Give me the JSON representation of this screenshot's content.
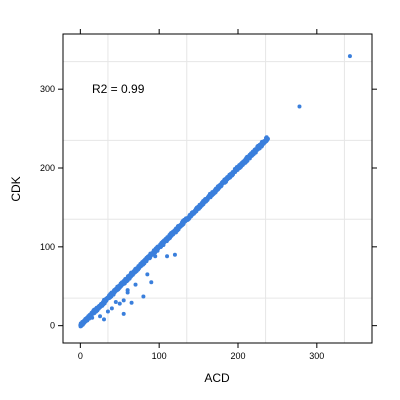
{
  "chart_data": {
    "type": "scatter",
    "xlabel": "ACD",
    "ylabel": "CDK",
    "xlim": [
      -22,
      370
    ],
    "ylim": [
      -22,
      370
    ],
    "xticks": [
      0,
      100,
      200,
      300
    ],
    "yticks": [
      0,
      100,
      200,
      300
    ],
    "grid": true,
    "annotation": "R2 = 0.99",
    "annotation_position": [
      15,
      296
    ],
    "point_color": "#3a7fdc",
    "line_cloud": {
      "x_start": 0,
      "x_end": 237,
      "slope": 1.0,
      "intercept": 0,
      "n": 450,
      "spread": 2.2
    },
    "outliers": [
      {
        "x": 342,
        "y": 342
      },
      {
        "x": 278,
        "y": 278
      },
      {
        "x": 238,
        "y": 237
      },
      {
        "x": 235,
        "y": 234
      },
      {
        "x": 120,
        "y": 90
      },
      {
        "x": 110,
        "y": 88
      },
      {
        "x": 95,
        "y": 88
      },
      {
        "x": 85,
        "y": 65
      },
      {
        "x": 90,
        "y": 55
      },
      {
        "x": 70,
        "y": 52
      },
      {
        "x": 60,
        "y": 45
      },
      {
        "x": 80,
        "y": 37
      },
      {
        "x": 55,
        "y": 32
      },
      {
        "x": 65,
        "y": 29
      },
      {
        "x": 50,
        "y": 28
      },
      {
        "x": 45,
        "y": 30
      },
      {
        "x": 40,
        "y": 22
      },
      {
        "x": 55,
        "y": 15
      },
      {
        "x": 35,
        "y": 18
      },
      {
        "x": 25,
        "y": 12
      },
      {
        "x": 15,
        "y": 10
      },
      {
        "x": 30,
        "y": 8
      },
      {
        "x": 60,
        "y": 42
      }
    ]
  }
}
